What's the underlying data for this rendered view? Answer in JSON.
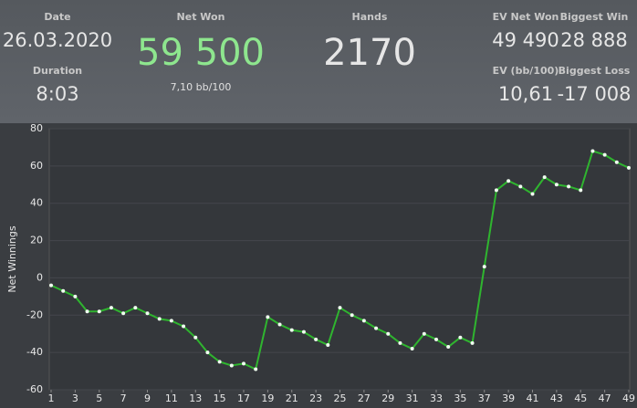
{
  "header": {
    "date": {
      "label": "Date",
      "value": "26.03.2020"
    },
    "duration": {
      "label": "Duration",
      "value": "8:03"
    },
    "net_won": {
      "label": "Net Won",
      "value": "59 500",
      "sub": "7,10 bb/100"
    },
    "hands": {
      "label": "Hands",
      "value": "2170"
    },
    "ev_net_won": {
      "label": "EV Net Won",
      "value": "49 490"
    },
    "biggest_win": {
      "label": "Biggest Win",
      "value": "28 888"
    },
    "ev_bb": {
      "label": "EV (bb/100)",
      "value": "10,61"
    },
    "biggest_loss": {
      "label": "Biggest Loss",
      "value": "-17 008"
    }
  },
  "chart_data": {
    "type": "line",
    "ylabel": "Net Winnings",
    "x": [
      1,
      2,
      3,
      4,
      5,
      6,
      7,
      8,
      9,
      10,
      11,
      12,
      13,
      14,
      15,
      16,
      17,
      18,
      19,
      20,
      21,
      22,
      23,
      24,
      25,
      26,
      27,
      28,
      29,
      30,
      31,
      32,
      33,
      34,
      35,
      36,
      37,
      38,
      39,
      40,
      41,
      42,
      43,
      44,
      45,
      46,
      47,
      48,
      49
    ],
    "series": [
      {
        "color": "#2fb52f",
        "values": [
          -4,
          -7,
          -10,
          -18,
          -18,
          -16,
          -19,
          -16,
          -19,
          -22,
          -23,
          -26,
          -32,
          -40,
          -45,
          -47,
          -46,
          -49,
          -21,
          -25,
          -28,
          -29,
          -33,
          -36,
          -16,
          -20,
          -23,
          -27,
          -30,
          -35,
          -38,
          -30,
          -33,
          -37,
          -32,
          -35,
          6,
          47,
          52,
          49,
          45,
          54,
          50,
          49,
          47,
          68,
          66,
          62,
          59
        ]
      }
    ],
    "xlim": [
      1,
      49
    ],
    "xticks": [
      1,
      3,
      5,
      7,
      9,
      11,
      13,
      15,
      17,
      19,
      21,
      23,
      25,
      27,
      29,
      31,
      33,
      35,
      37,
      39,
      41,
      43,
      45,
      47,
      49
    ],
    "ylim": [
      -60,
      80
    ],
    "yticks": [
      -60,
      -40,
      -20,
      0,
      20,
      40,
      60,
      80
    ],
    "grid": true
  }
}
